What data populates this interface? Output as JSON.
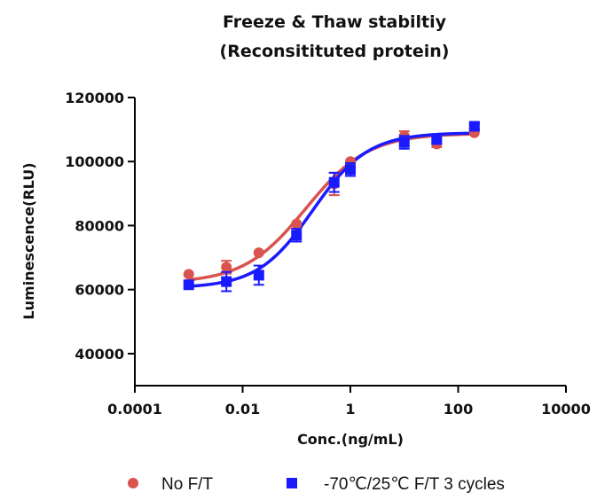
{
  "chart_data": {
    "type": "scatter",
    "title_line1": "Freeze & Thaw stabiltiy",
    "title_line2": "(Reconsitituted protein)",
    "xlabel": "Conc.(ng/mL)",
    "ylabel": "Luminescence(RLU)",
    "x_scale": "log",
    "xlim": [
      0.0001,
      10000
    ],
    "ylim": [
      30000,
      120000
    ],
    "x_ticks": [
      0.0001,
      0.01,
      1,
      100,
      10000
    ],
    "x_tick_labels": [
      "0.0001",
      "0.01",
      "1",
      "100",
      "10000"
    ],
    "y_ticks": [
      40000,
      60000,
      80000,
      100000,
      120000
    ],
    "y_tick_labels": [
      "40000",
      "60000",
      "80000",
      "100000",
      "120000"
    ],
    "legend_position": "bottom",
    "series": [
      {
        "name": "No F/T",
        "marker": "circle",
        "color": "#d9534f",
        "x": [
          0.001,
          0.005,
          0.02,
          0.1,
          0.5,
          1,
          10,
          40,
          200
        ],
        "y": [
          64800,
          67000,
          71500,
          80500,
          93000,
          100000,
          108000,
          105500,
          109000
        ],
        "err": [
          0,
          2000,
          0,
          0,
          3500,
          0,
          1500,
          1000,
          0
        ],
        "fit": {
          "bottom": 62000,
          "top": 108800,
          "ec50": 0.15,
          "hill": 0.75
        }
      },
      {
        "name": "-70℃/25℃  F/T 3 cycles",
        "marker": "square",
        "color": "#1a1aff",
        "x": [
          0.001,
          0.005,
          0.02,
          0.1,
          0.5,
          1,
          10,
          40,
          200
        ],
        "y": [
          61500,
          62500,
          64500,
          77000,
          93500,
          97500,
          106000,
          107000,
          111000
        ],
        "err": [
          0,
          3000,
          3000,
          2000,
          3000,
          2000,
          2000,
          1500,
          1000
        ],
        "fit": {
          "bottom": 60500,
          "top": 109000,
          "ec50": 0.2,
          "hill": 0.85
        }
      }
    ]
  }
}
